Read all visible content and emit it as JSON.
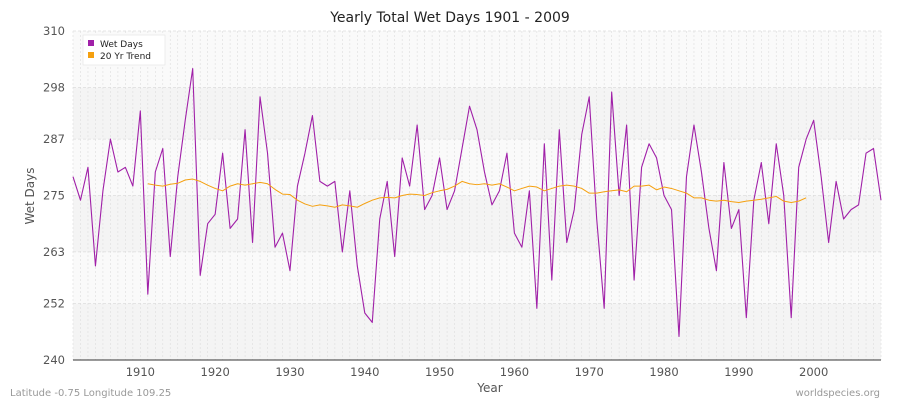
{
  "chart_data": {
    "type": "line",
    "title": "Yearly Total Wet Days 1901 - 2009",
    "xlabel": "Year",
    "ylabel": "Wet Days",
    "xlim": [
      1901,
      2009
    ],
    "ylim": [
      240,
      310
    ],
    "y_ticks": [
      240,
      252,
      263,
      275,
      287,
      298,
      310
    ],
    "x_ticks": [
      1910,
      1920,
      1930,
      1940,
      1950,
      1960,
      1970,
      1980,
      1990,
      2000
    ],
    "grid": true,
    "legend_position": "top-left",
    "series": [
      {
        "name": "Wet Days",
        "color": "#a020a8",
        "x": [
          1901,
          1902,
          1903,
          1904,
          1905,
          1906,
          1907,
          1908,
          1909,
          1910,
          1911,
          1912,
          1913,
          1914,
          1915,
          1916,
          1917,
          1918,
          1919,
          1920,
          1921,
          1922,
          1923,
          1924,
          1925,
          1926,
          1927,
          1928,
          1929,
          1930,
          1931,
          1932,
          1933,
          1934,
          1935,
          1936,
          1937,
          1938,
          1939,
          1940,
          1941,
          1942,
          1943,
          1944,
          1945,
          1946,
          1947,
          1948,
          1949,
          1950,
          1951,
          1952,
          1953,
          1954,
          1955,
          1956,
          1957,
          1958,
          1959,
          1960,
          1961,
          1962,
          1963,
          1964,
          1965,
          1966,
          1967,
          1968,
          1969,
          1970,
          1971,
          1972,
          1973,
          1974,
          1975,
          1976,
          1977,
          1978,
          1979,
          1980,
          1981,
          1982,
          1983,
          1984,
          1985,
          1986,
          1987,
          1988,
          1989,
          1990,
          1991,
          1992,
          1993,
          1994,
          1995,
          1996,
          1997,
          1998,
          1999,
          2000,
          2001,
          2002,
          2003,
          2004,
          2005,
          2006,
          2007,
          2008,
          2009
        ],
        "y": [
          279,
          274,
          281,
          260,
          276,
          287,
          280,
          281,
          277,
          293,
          254,
          280,
          285,
          262,
          279,
          291,
          302,
          258,
          269,
          271,
          284,
          268,
          270,
          289,
          265,
          296,
          284,
          264,
          267,
          259,
          277,
          284,
          292,
          278,
          277,
          278,
          263,
          276,
          260,
          250,
          248,
          270,
          278,
          262,
          283,
          277,
          290,
          272,
          275,
          283,
          272,
          276,
          285,
          294,
          289,
          280,
          273,
          276,
          284,
          267,
          264,
          276,
          251,
          286,
          257,
          289,
          265,
          272,
          288,
          296,
          270,
          251,
          297,
          275,
          290,
          257,
          281,
          286,
          283,
          275,
          272,
          245,
          279,
          290,
          280,
          268,
          259,
          282,
          268,
          272,
          249,
          274,
          282,
          269,
          286,
          275,
          249,
          281,
          287,
          291,
          279,
          265,
          278,
          270,
          272,
          273,
          284,
          285,
          274
        ]
      },
      {
        "name": "20 Yr Trend",
        "color": "#f5a00f",
        "x": [
          1911,
          1912,
          1913,
          1914,
          1915,
          1916,
          1917,
          1918,
          1919,
          1920,
          1921,
          1922,
          1923,
          1924,
          1925,
          1926,
          1927,
          1928,
          1929,
          1930,
          1931,
          1932,
          1933,
          1934,
          1935,
          1936,
          1937,
          1938,
          1939,
          1940,
          1941,
          1942,
          1943,
          1944,
          1945,
          1946,
          1947,
          1948,
          1949,
          1950,
          1951,
          1952,
          1953,
          1954,
          1955,
          1956,
          1957,
          1958,
          1959,
          1960,
          1961,
          1962,
          1963,
          1964,
          1965,
          1966,
          1967,
          1968,
          1969,
          1970,
          1971,
          1972,
          1973,
          1974,
          1975,
          1976,
          1977,
          1978,
          1979,
          1980,
          1981,
          1982,
          1983,
          1984,
          1985,
          1986,
          1987,
          1988,
          1989,
          1990,
          1991,
          1992,
          1993,
          1994,
          1995,
          1996,
          1997,
          1998,
          1999
        ],
        "y": [
          277.5,
          277.2,
          277.0,
          277.4,
          277.6,
          278.3,
          278.5,
          278.0,
          277.2,
          276.5,
          276.0,
          277.0,
          277.5,
          277.2,
          277.5,
          277.8,
          277.5,
          276.3,
          275.3,
          275.2,
          274.0,
          273.2,
          272.7,
          273.0,
          272.8,
          272.5,
          273.0,
          272.8,
          272.5,
          273.3,
          274.0,
          274.5,
          274.6,
          274.5,
          275.0,
          275.3,
          275.2,
          275.0,
          275.6,
          276.0,
          276.3,
          277.0,
          278.0,
          277.5,
          277.3,
          277.5,
          277.2,
          277.5,
          276.8,
          276.0,
          276.5,
          277.0,
          276.8,
          276.0,
          276.5,
          277.0,
          277.2,
          277.0,
          276.5,
          275.5,
          275.5,
          275.8,
          276.0,
          276.2,
          275.8,
          277.0,
          277.0,
          277.2,
          276.2,
          276.8,
          276.5,
          276.0,
          275.5,
          274.5,
          274.5,
          274.0,
          273.8,
          274.0,
          273.7,
          273.5,
          273.8,
          274.0,
          274.2,
          274.5,
          274.8,
          273.8,
          273.5,
          273.8,
          274.5
        ]
      }
    ]
  },
  "footer": {
    "left": "Latitude -0.75 Longitude 109.25",
    "right": "worldspecies.org"
  }
}
